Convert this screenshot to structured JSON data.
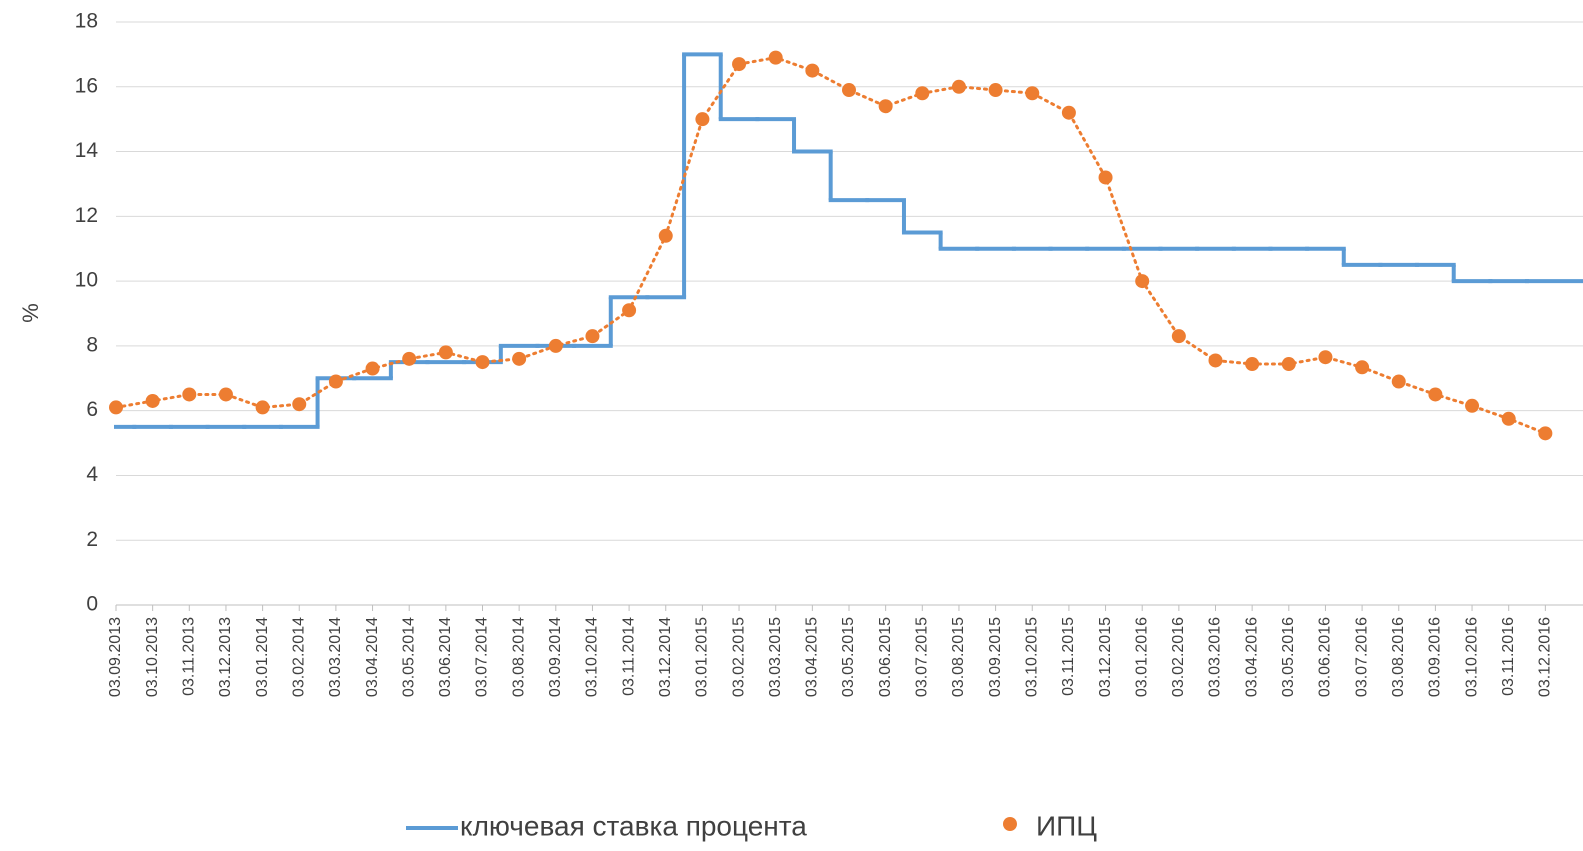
{
  "chart_data": {
    "type": "line",
    "y_label": "%",
    "categories": [
      "03.09.2013",
      "03.10.2013",
      "03.11.2013",
      "03.12.2013",
      "03.01.2014",
      "03.02.2014",
      "03.03.2014",
      "03.04.2014",
      "03.05.2014",
      "03.06.2014",
      "03.07.2014",
      "03.08.2014",
      "03.09.2014",
      "03.10.2014",
      "03.11.2014",
      "03.12.2014",
      "03.01.2015",
      "03.02.2015",
      "03.03.2015",
      "03.04.2015",
      "03.05.2015",
      "03.06.2015",
      "03.07.2015",
      "03.08.2015",
      "03.09.2015",
      "03.10.2015",
      "03.11.2015",
      "03.12.2015",
      "03.01.2016",
      "03.02.2016",
      "03.03.2016",
      "03.04.2016",
      "03.05.2016",
      "03.06.2016",
      "03.07.2016",
      "03.08.2016",
      "03.09.2016",
      "03.10.2016",
      "03.11.2016",
      "03.12.2016"
    ],
    "series": [
      {
        "name": "ключевая ставка процента",
        "color": "#5b9bd5",
        "style": "step",
        "values": [
          5.5,
          5.5,
          5.5,
          5.5,
          5.5,
          5.5,
          7,
          7,
          7.5,
          7.5,
          7.5,
          8,
          8,
          8,
          9.5,
          9.5,
          17,
          15,
          15,
          14,
          12.5,
          12.5,
          11.5,
          11,
          11,
          11,
          11,
          11,
          11,
          11,
          11,
          11,
          11,
          11,
          10.5,
          10.5,
          10.5,
          10,
          10,
          10
        ]
      },
      {
        "name": "ИПЦ",
        "color": "#ed7d31",
        "style": "dotted-markers",
        "values": [
          6.1,
          6.3,
          6.5,
          6.5,
          6.1,
          6.2,
          6.9,
          7.3,
          7.6,
          7.8,
          7.5,
          7.6,
          8.0,
          8.3,
          9.1,
          11.4,
          15.0,
          16.7,
          16.9,
          16.5,
          15.9,
          15.4,
          15.8,
          16.0,
          15.9,
          15.8,
          15.2,
          13.2,
          10.0,
          8.3,
          7.55,
          7.44,
          7.44,
          7.65,
          7.34,
          6.9,
          6.5,
          6.15,
          5.75,
          5.3
        ]
      }
    ],
    "ylim": [
      0,
      18
    ],
    "yticks": [
      0,
      2,
      4,
      6,
      8,
      10,
      12,
      14,
      16,
      18
    ],
    "grid": true,
    "legend": "bottom"
  }
}
